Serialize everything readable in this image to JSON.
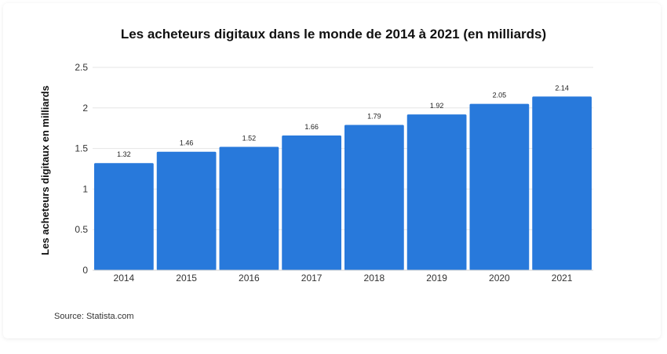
{
  "chart_data": {
    "type": "bar",
    "title": "Les acheteurs digitaux dans le monde de 2014 à 2021 (en milliards)",
    "xlabel": "",
    "ylabel": "Les acheteurs digitaux en milliards",
    "categories": [
      "2014",
      "2015",
      "2016",
      "2017",
      "2018",
      "2019",
      "2020",
      "2021"
    ],
    "values": [
      1.32,
      1.46,
      1.52,
      1.66,
      1.79,
      1.92,
      2.05,
      2.14
    ],
    "value_labels": [
      "1.32",
      "1.46",
      "1.52",
      "1.66",
      "1.79",
      "1.92",
      "2.05",
      "2.14"
    ],
    "ylim": [
      0,
      2.5
    ],
    "yticks": [
      0,
      0.5,
      1,
      1.5,
      2,
      2.5
    ],
    "ytick_labels": [
      "0",
      "0.5",
      "1",
      "1.5",
      "2",
      "2.5"
    ],
    "grid": true,
    "bar_color": "#2879db",
    "grid_color": "#e6e6e6"
  },
  "source": "Source: Statista.com"
}
